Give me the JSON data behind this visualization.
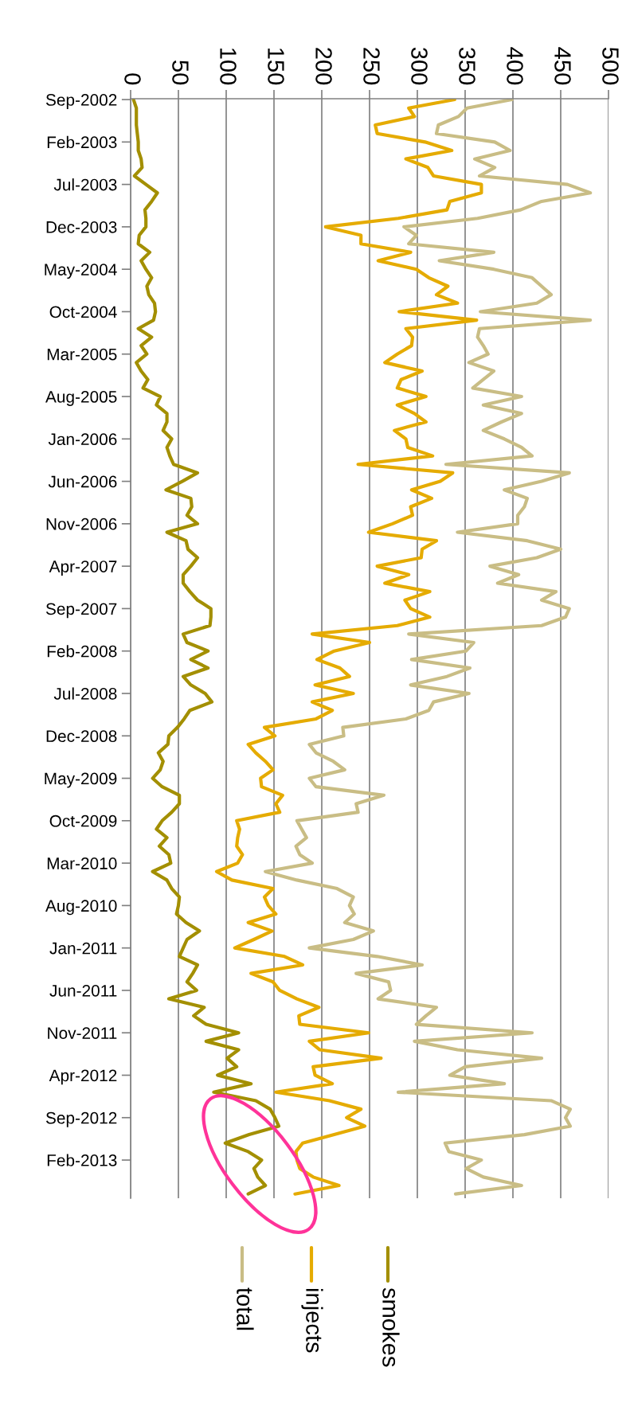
{
  "chart_data": {
    "type": "line",
    "orientation": "horizontal",
    "categories": [
      "Sep-2002",
      null,
      null,
      null,
      null,
      "Feb-2003",
      null,
      null,
      null,
      null,
      "Jul-2003",
      null,
      null,
      null,
      null,
      "Dec-2003",
      null,
      null,
      null,
      null,
      "May-2004",
      null,
      null,
      null,
      null,
      "Oct-2004",
      null,
      null,
      null,
      null,
      "Mar-2005",
      null,
      null,
      null,
      null,
      "Aug-2005",
      null,
      null,
      null,
      null,
      "Jan-2006",
      null,
      null,
      null,
      null,
      "Jun-2006",
      null,
      null,
      null,
      null,
      "Nov-2006",
      null,
      null,
      null,
      null,
      "Apr-2007",
      null,
      null,
      null,
      null,
      "Sep-2007",
      null,
      null,
      null,
      null,
      "Feb-2008",
      null,
      null,
      null,
      null,
      "Jul-2008",
      null,
      null,
      null,
      null,
      "Dec-2008",
      null,
      null,
      null,
      null,
      "May-2009",
      null,
      null,
      null,
      null,
      "Oct-2009",
      null,
      null,
      null,
      null,
      "Mar-2010",
      null,
      null,
      null,
      null,
      "Aug-2010",
      null,
      null,
      null,
      null,
      "Jan-2011",
      null,
      null,
      null,
      null,
      "Jun-2011",
      null,
      null,
      null,
      null,
      "Nov-2011",
      null,
      null,
      null,
      null,
      "Apr-2012",
      null,
      null,
      null,
      null,
      "Sep-2012",
      null,
      null,
      null,
      null,
      "Feb-2013",
      null,
      null,
      null,
      null
    ],
    "series": [
      {
        "name": "smokes",
        "color": "#a38f00",
        "values": [
          3,
          6,
          6,
          6,
          7,
          8,
          8,
          11,
          12,
          4,
          16,
          28,
          22,
          15,
          16,
          16,
          9,
          8,
          20,
          11,
          16,
          22,
          17,
          19,
          25,
          26,
          24,
          8,
          22,
          11,
          17,
          6,
          11,
          18,
          13,
          31,
          27,
          38,
          38,
          34,
          43,
          38,
          41,
          45,
          70,
          54,
          37,
          63,
          64,
          59,
          70,
          38,
          58,
          60,
          70,
          63,
          55,
          55,
          62,
          70,
          84,
          84,
          83,
          55,
          59,
          81,
          63,
          81,
          55,
          63,
          78,
          85,
          62,
          56,
          49,
          40,
          39,
          29,
          34,
          31,
          23,
          33,
          51,
          51,
          43,
          33,
          27,
          38,
          30,
          40,
          42,
          23,
          38,
          43,
          51,
          50,
          48,
          58,
          72,
          59,
          55,
          51,
          70,
          65,
          59,
          69,
          40,
          77,
          66,
          79,
          113,
          79,
          113,
          101,
          111,
          91,
          126,
          87,
          131,
          146,
          151,
          155,
          124,
          99,
          123,
          137,
          129,
          133,
          141,
          123
        ]
      },
      {
        "name": "injects",
        "color": "#e5ab00",
        "values": [
          339,
          291,
          297,
          256,
          258,
          308,
          336,
          288,
          311,
          317,
          367,
          367,
          334,
          331,
          280,
          204,
          241,
          241,
          293,
          259,
          299,
          312,
          332,
          320,
          342,
          281,
          362,
          288,
          295,
          294,
          279,
          266,
          305,
          283,
          279,
          309,
          279,
          297,
          309,
          276,
          288,
          290,
          316,
          238,
          337,
          324,
          294,
          315,
          293,
          295,
          274,
          249,
          320,
          305,
          304,
          258,
          291,
          266,
          313,
          287,
          293,
          313,
          279,
          190,
          250,
          213,
          195,
          219,
          229,
          193,
          233,
          190,
          211,
          194,
          140,
          151,
          123,
          131,
          141,
          149,
          136,
          137,
          159,
          152,
          156,
          111,
          114,
          112,
          111,
          117,
          112,
          90,
          106,
          149,
          140,
          144,
          152,
          123,
          148,
          129,
          109,
          161,
          180,
          126,
          149,
          156,
          174,
          197,
          176,
          177,
          249,
          187,
          198,
          262,
          191,
          193,
          211,
          152,
          208,
          241,
          226,
          245,
          213,
          180,
          173,
          174,
          177,
          191,
          218,
          172
        ]
      },
      {
        "name": "total",
        "color": "#c9bd85",
        "values": [
          399,
          352,
          343,
          322,
          320,
          381,
          397,
          360,
          381,
          365,
          457,
          481,
          430,
          408,
          363,
          286,
          299,
          291,
          380,
          323,
          380,
          420,
          430,
          440,
          425,
          366,
          481,
          365,
          363,
          369,
          374,
          354,
          380,
          369,
          358,
          409,
          369,
          409,
          388,
          369,
          391,
          409,
          420,
          330,
          459,
          430,
          391,
          415,
          412,
          405,
          405,
          342,
          415,
          450,
          425,
          376,
          406,
          384,
          445,
          430,
          459,
          455,
          430,
          291,
          359,
          351,
          294,
          355,
          331,
          293,
          354,
          317,
          312,
          288,
          222,
          223,
          187,
          194,
          212,
          224,
          187,
          194,
          265,
          236,
          238,
          174,
          179,
          184,
          173,
          177,
          190,
          141,
          174,
          216,
          233,
          229,
          234,
          224,
          254,
          233,
          187,
          258,
          305,
          236,
          270,
          272,
          259,
          320,
          309,
          299,
          420,
          297,
          342,
          430,
          350,
          334,
          391,
          280,
          440,
          460,
          455,
          460,
          412,
          329,
          333,
          367,
          351,
          369,
          409,
          340
        ]
      }
    ],
    "xlim": [
      0,
      500
    ],
    "xticks": [
      0,
      50,
      100,
      150,
      200,
      250,
      300,
      350,
      400,
      450,
      500
    ],
    "grid": "x",
    "legend": "bottom",
    "line_style": "solid"
  }
}
